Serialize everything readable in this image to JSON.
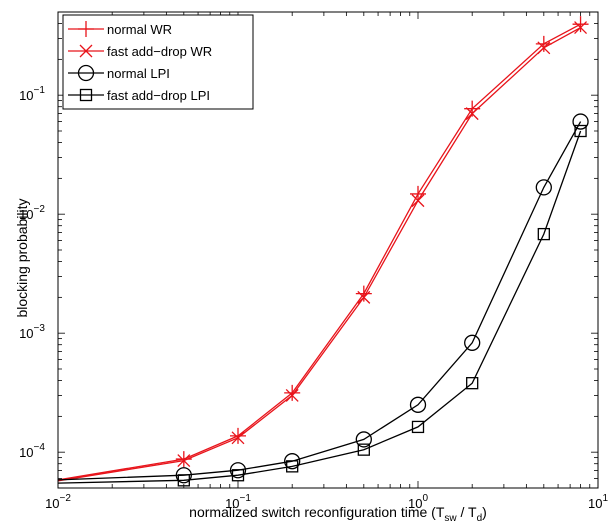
{
  "chart_data": {
    "type": "line",
    "x_scale": "log",
    "y_scale": "log",
    "xlim": [
      0.01,
      10
    ],
    "ylim": [
      5e-05,
      0.5
    ],
    "xlabel": "normalized switch reconfiguration time (T_sw / T_d)",
    "ylabel": "blocking probability",
    "x_ticks": [
      {
        "value": 0.01,
        "base": "10",
        "exp": "−2"
      },
      {
        "value": 0.1,
        "base": "10",
        "exp": "−1"
      },
      {
        "value": 1,
        "base": "10",
        "exp": "0"
      },
      {
        "value": 10,
        "base": "10",
        "exp": "1"
      }
    ],
    "y_ticks": [
      {
        "value": 0.0001,
        "base": "10",
        "exp": "−4"
      },
      {
        "value": 0.001,
        "base": "10",
        "exp": "−3"
      },
      {
        "value": 0.01,
        "base": "10",
        "exp": "−2"
      },
      {
        "value": 0.1,
        "base": "10",
        "exp": "−1"
      }
    ],
    "legend_position": "top-left",
    "grid": false,
    "series": [
      {
        "name": "normal WR",
        "color": "#e8141b",
        "marker": "plus",
        "x": [
          0.01,
          0.05,
          0.1,
          0.2,
          0.5,
          1,
          2,
          5,
          8
        ],
        "y": [
          5.85e-05,
          8.75e-05,
          0.000137,
          0.000315,
          0.00215,
          0.0148,
          0.077,
          0.27,
          0.395
        ]
      },
      {
        "name": "fast add−drop WR",
        "color": "#e8141b",
        "marker": "x",
        "x": [
          0.01,
          0.05,
          0.1,
          0.2,
          0.5,
          1,
          2,
          5,
          8
        ],
        "y": [
          5.75e-05,
          8.5e-05,
          0.000132,
          0.0003,
          0.002,
          0.013,
          0.07,
          0.25,
          0.37
        ]
      },
      {
        "name": "normal LPI",
        "color": "#000000",
        "marker": "circle",
        "x": [
          0.01,
          0.05,
          0.1,
          0.2,
          0.5,
          1,
          2,
          5,
          8
        ],
        "y": [
          5.85e-05,
          6.4e-05,
          7.05e-05,
          8.4e-05,
          0.000128,
          0.00025,
          0.00083,
          0.0168,
          0.06
        ]
      },
      {
        "name": "fast add−drop LPI",
        "color": "#000000",
        "marker": "square",
        "x": [
          0.01,
          0.05,
          0.1,
          0.2,
          0.5,
          1,
          2,
          5,
          8
        ],
        "y": [
          5.5e-05,
          5.8e-05,
          6.4e-05,
          7.6e-05,
          0.000105,
          0.000163,
          0.00038,
          0.0068,
          0.05
        ]
      }
    ]
  },
  "labels": {
    "ylabel": "blocking probability",
    "xlabel_main": "normalized switch reconfiguration time (T",
    "xlabel_sub1": "sw",
    "xlabel_mid": " / T",
    "xlabel_sub2": "d",
    "xlabel_end": ")"
  }
}
